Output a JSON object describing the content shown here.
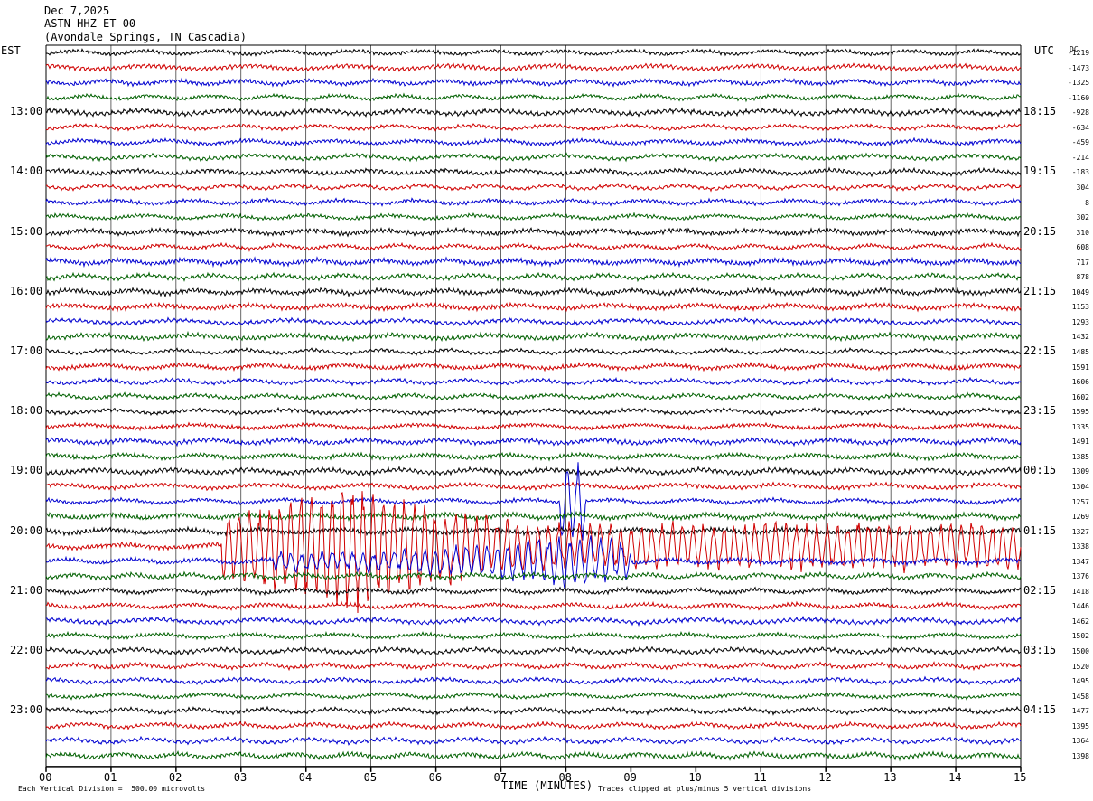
{
  "header": {
    "date": "Dec 7,2025",
    "station": "ASTN HHZ ET 00",
    "location": "(Avondale Springs, TN Cascadia)"
  },
  "left_axis_label": "EST",
  "right_axis_label": "UTC",
  "dc_label": "DC",
  "footer": {
    "scale_note": "Each Vertical Division =  500.00 microvolts",
    "xlabel": "TIME (MINUTES)",
    "clip_note": "Traces clipped at plus/minus 5 vertical divisions"
  },
  "colors": {
    "trace_cycle": [
      "#000000",
      "#d00000",
      "#0000d0",
      "#006000"
    ],
    "grid": "#000000",
    "background": "#ffffff"
  },
  "chart_data": {
    "type": "line",
    "title": "ASTN HHZ ET 00",
    "xlabel": "TIME (MINUTES)",
    "xlim": [
      0,
      15
    ],
    "x_ticks": [
      "00",
      "01",
      "02",
      "03",
      "04",
      "05",
      "06",
      "07",
      "08",
      "09",
      "10",
      "11",
      "12",
      "13",
      "14",
      "15"
    ],
    "trace_count": 48,
    "trace_minutes": 15,
    "est_hour_labels": [
      "13:00",
      "14:00",
      "15:00",
      "16:00",
      "17:00",
      "18:00",
      "19:00",
      "20:00",
      "21:00",
      "22:00",
      "23:00"
    ],
    "utc_hour_labels": [
      "18:15",
      "19:15",
      "20:15",
      "21:15",
      "22:15",
      "23:15",
      "00:15",
      "01:15",
      "02:15",
      "03:15",
      "04:15"
    ],
    "first_hour_trace_index": 4,
    "dc_offsets": [
      "-1219",
      "-1473",
      "-1325",
      "-1160",
      "-928",
      "-634",
      "-459",
      "-214",
      "-183",
      "304",
      "8",
      "302",
      "310",
      "608",
      "717",
      "878",
      "1049",
      "1153",
      "1293",
      "1432",
      "1485",
      "1591",
      "1606",
      "1602",
      "1595",
      "1335",
      "1491",
      "1385",
      "1309",
      "1304",
      "1257",
      "1269",
      "1327",
      "1338",
      "1347",
      "1376",
      "1418",
      "1446",
      "1462",
      "1502",
      "1500",
      "1520",
      "1495",
      "1458",
      "1477",
      "1395",
      "1364",
      "1398"
    ],
    "events": [
      {
        "trace_index": 33,
        "start_minute": 2.7,
        "end_minute": 15,
        "peak_minute": 4.6,
        "amplitude_divisions": 5,
        "note": "large clipped signal"
      },
      {
        "trace_index": 30,
        "start_minute": 7.9,
        "end_minute": 8.3,
        "peak_minute": 8.1,
        "amplitude_divisions": 3
      },
      {
        "trace_index": 34,
        "start_minute": 3.5,
        "end_minute": 9.0,
        "peak_minute": 8.1,
        "amplitude_divisions": 2
      }
    ]
  }
}
